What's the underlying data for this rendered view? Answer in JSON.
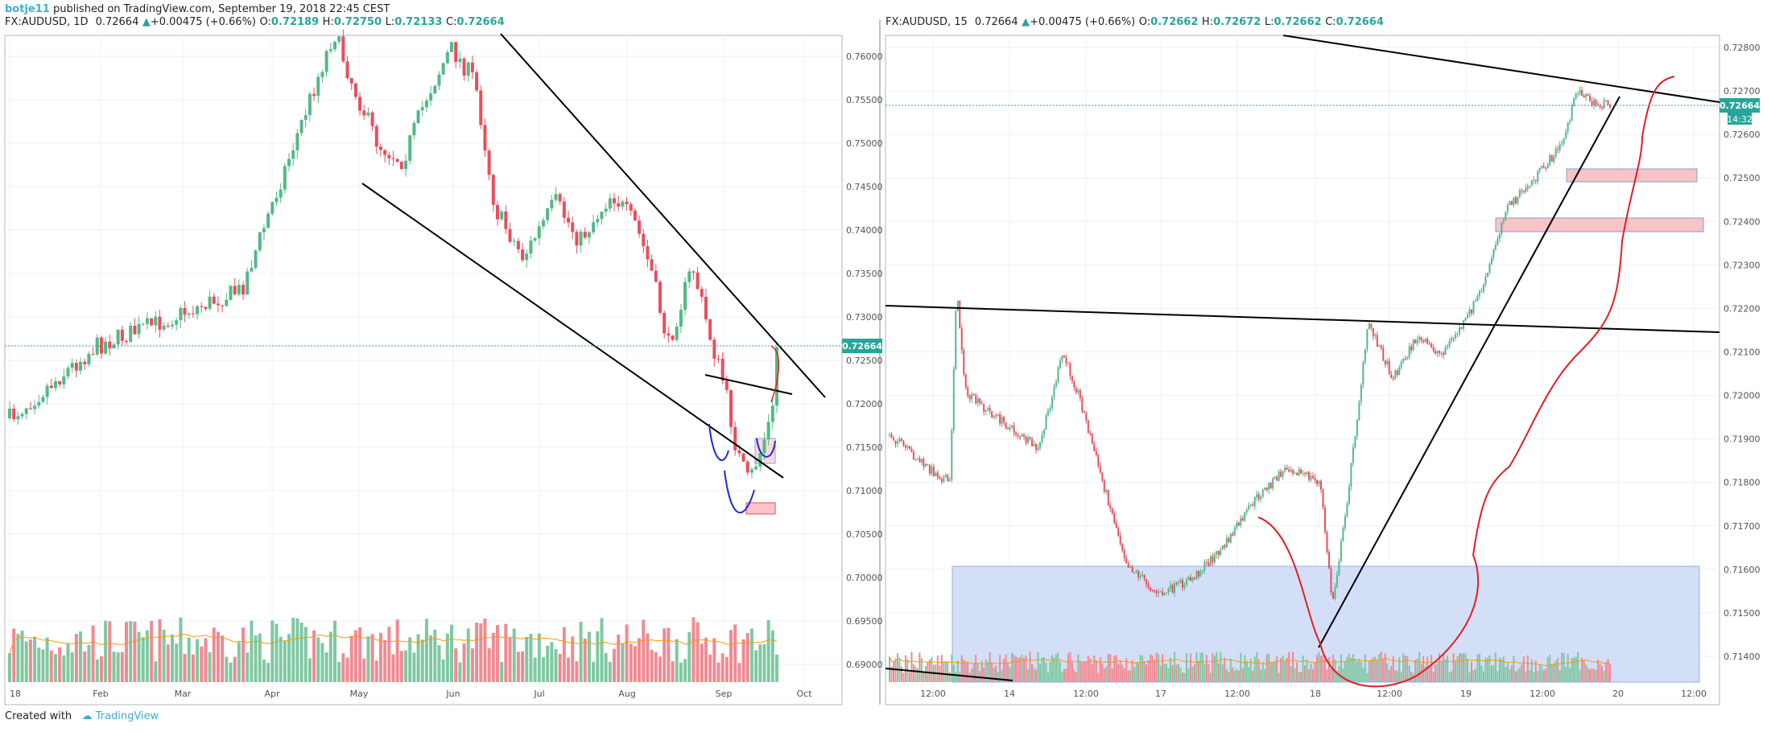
{
  "header": {
    "author": "botje11",
    "published": "published on TradingView.com, September 19, 2018 22:45 CEST"
  },
  "footer": {
    "created_with": "Created with",
    "brand": "TradingView",
    "brand_icon": "tradingview-logo-icon"
  },
  "colors": {
    "up": "#53b987",
    "down": "#eb4d5c",
    "volume_up": "#7fc8a2",
    "volume_down": "#f08a93",
    "ma": "#ff9800",
    "accent": "#3bafda",
    "zone_fill": "#c9d8f5",
    "zone_red": "#f9c3c8"
  },
  "left": {
    "symbol": "FX:AUDUSD, 1D",
    "last": "0.72664",
    "change": "+0.00475 (+0.66%)",
    "o_label": "O:",
    "o": "0.72189",
    "h_label": "H:",
    "h": "0.72750",
    "l_label": "L:",
    "l": "0.72133",
    "c_label": "C:",
    "c": "0.72664",
    "price_tag": "0.72664"
  },
  "right": {
    "symbol": "FX:AUDUSD, 15",
    "last": "0.72664",
    "change": "+0.00475 (+0.66%)",
    "o_label": "O:",
    "o": "0.72662",
    "h_label": "H:",
    "h": "0.72672",
    "l_label": "L:",
    "l": "0.72662",
    "c_label": "C:",
    "c": "0.72664",
    "price_tag": "0.72664",
    "countdown": "14:32"
  },
  "chart_data": [
    {
      "type": "candlestick",
      "symbol": "FX:AUDUSD",
      "interval": "1D",
      "y_ticks": [
        "0.76000",
        "0.75500",
        "0.75000",
        "0.74500",
        "0.74000",
        "0.73500",
        "0.73000",
        "0.72500",
        "0.72000",
        "0.71500",
        "0.71000",
        "0.70500",
        "0.70000",
        "0.69500",
        "0.69000"
      ],
      "ylim": [
        0.6885,
        0.763
      ],
      "x_ticks": [
        "18",
        "Feb",
        "Mar",
        "Apr",
        "May",
        "Jun",
        "Jul",
        "Aug",
        "Sep",
        "Oct"
      ],
      "last_price": 0.72664,
      "has_volume": true,
      "has_volume_ma": true
    },
    {
      "type": "candlestick",
      "symbol": "FX:AUDUSD",
      "interval": "15",
      "y_ticks": [
        "0.72800",
        "0.72700",
        "0.72600",
        "0.72500",
        "0.72400",
        "0.72300",
        "0.72200",
        "0.72100",
        "0.72000",
        "0.71900",
        "0.71800",
        "0.71700",
        "0.71600",
        "0.71500",
        "0.71400"
      ],
      "ylim": [
        0.71335,
        0.72805
      ],
      "x_ticks": [
        "12:00",
        "14",
        "12:00",
        "17",
        "12:00",
        "18",
        "12:00",
        "19",
        "12:00",
        "20",
        "12:00"
      ],
      "last_price": 0.72664,
      "has_volume": true,
      "has_volume_ma": true
    }
  ]
}
